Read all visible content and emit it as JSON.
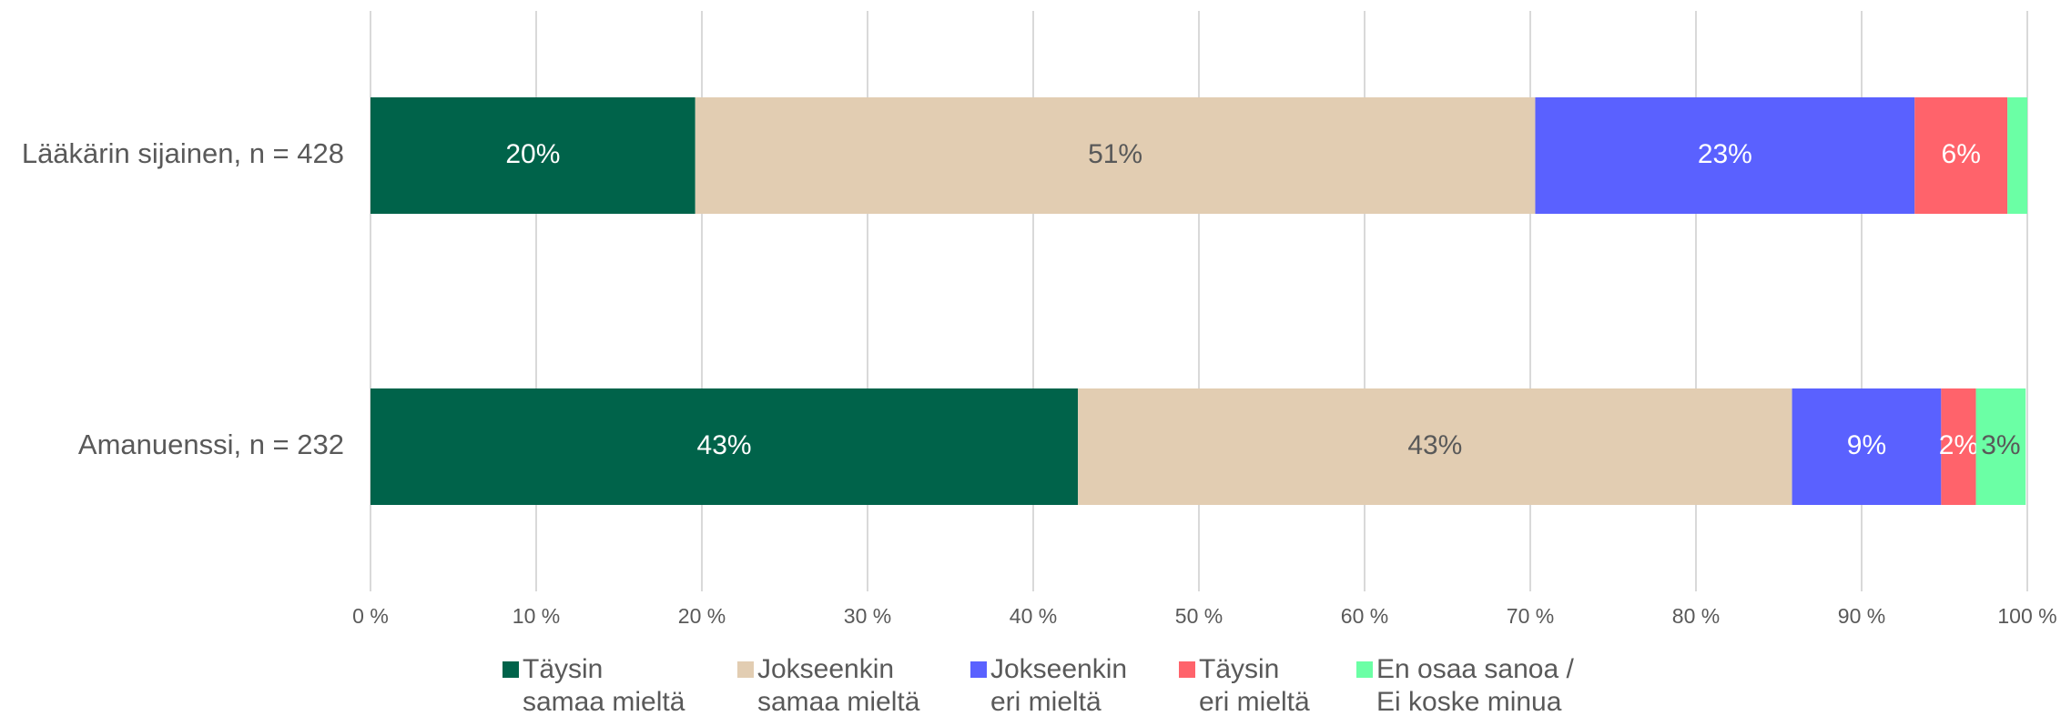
{
  "chart_data": {
    "type": "stacked-bar-horizontal",
    "categories": [
      "Lääkärin sijainen, n = 428",
      "Amanuenssi, n = 232"
    ],
    "series": [
      {
        "name": "Täysin\nsamaa mieltä",
        "color": "#00634a",
        "label_color": "#ffffff",
        "values": [
          19.6,
          42.7
        ],
        "value_labels": [
          "20%",
          "43%"
        ]
      },
      {
        "name": "Jokseenkin\nsamaa mieltä",
        "color": "#e2cdb2",
        "label_color": "#595959",
        "values": [
          50.7,
          43.1
        ],
        "value_labels": [
          "51%",
          "43%"
        ]
      },
      {
        "name": "Jokseenkin\neri mieltä",
        "color": "#5a61ff",
        "label_color": "#ffffff",
        "values": [
          22.9,
          9.0
        ],
        "value_labels": [
          "23%",
          "9%"
        ]
      },
      {
        "name": "Täysin\neri mieltä",
        "color": "#ff636b",
        "label_color": "#ffffff",
        "values": [
          5.6,
          2.1
        ],
        "value_labels": [
          "6%",
          "2%"
        ]
      },
      {
        "name": "En osaa sanoa /\nEi koske minua",
        "color": "#6bffa5",
        "label_color": "#595959",
        "values": [
          1.2,
          3.0
        ],
        "value_labels": [
          null,
          "3%"
        ]
      }
    ],
    "xlim": [
      0,
      100
    ],
    "xticks": [
      {
        "value": 0,
        "label": "0 %"
      },
      {
        "value": 10,
        "label": "10 %"
      },
      {
        "value": 20,
        "label": "20 %"
      },
      {
        "value": 30,
        "label": "30 %"
      },
      {
        "value": 40,
        "label": "40 %"
      },
      {
        "value": 50,
        "label": "50 %"
      },
      {
        "value": 60,
        "label": "60 %"
      },
      {
        "value": 70,
        "label": "70 %"
      },
      {
        "value": 80,
        "label": "80 %"
      },
      {
        "value": 90,
        "label": "90 %"
      },
      {
        "value": 100,
        "label": "100 %"
      }
    ],
    "grid": true,
    "legend": "bottom"
  }
}
